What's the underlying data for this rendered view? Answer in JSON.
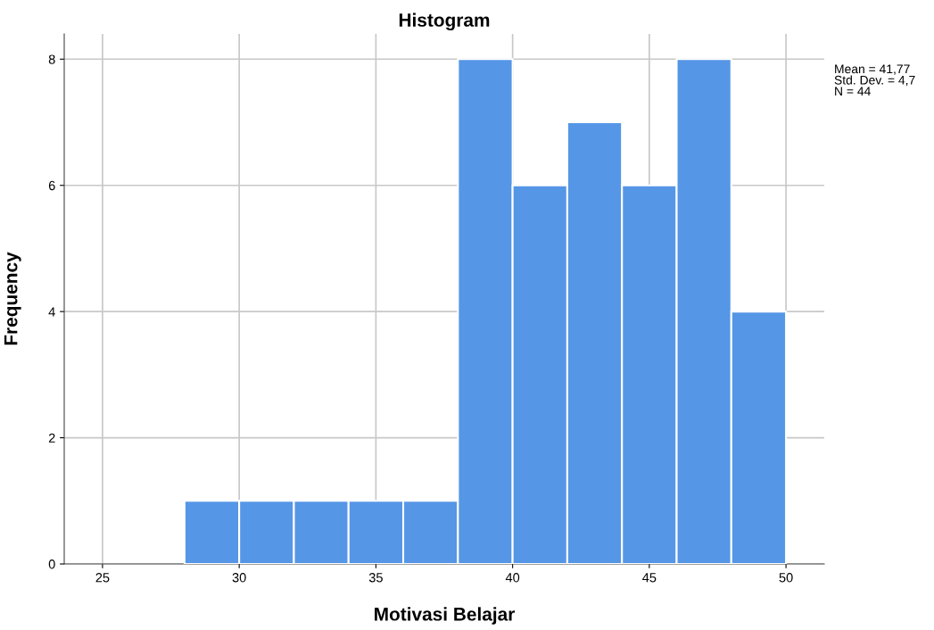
{
  "chart_data": {
    "type": "histogram",
    "title": "Histogram",
    "xlabel": "Motivasi Belajar",
    "ylabel": "Frequency",
    "bins": [
      28,
      30,
      32,
      34,
      36,
      38,
      40,
      42,
      44,
      46,
      48,
      50
    ],
    "values": [
      1,
      1,
      1,
      1,
      1,
      8,
      6,
      7,
      6,
      8,
      4
    ],
    "color": "#5596e6",
    "xlim": [
      23.6,
      51.4
    ],
    "xticks": [
      25,
      30,
      35,
      40,
      45,
      50
    ],
    "ylim": [
      0,
      8.4
    ],
    "yticks": [
      0,
      2,
      4,
      6,
      8
    ],
    "grid": true,
    "annotations": [
      "Mean = 41,77",
      "Std. Dev. = 4,7",
      "N = 44"
    ]
  }
}
